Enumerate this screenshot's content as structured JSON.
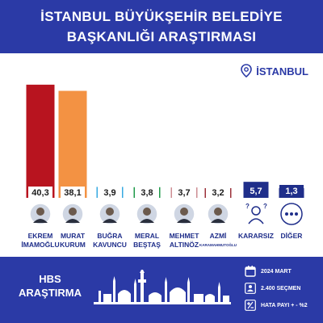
{
  "header": {
    "title_line1": "İSTANBUL BÜYÜKŞEHİR BELEDİYE",
    "title_line2": "BAŞKANLIĞI ARAŞTIRMASI"
  },
  "location": {
    "label": "İSTANBUL",
    "icon": "map-pin-icon"
  },
  "colors": {
    "header_bg": "#2b3aa6",
    "footer_bg": "#2b3aa6"
  },
  "chart_data": {
    "type": "bar",
    "categories": [
      {
        "line1": "EKREM",
        "line2": "İMAMOĞLU",
        "color": "#b8141f",
        "avatar": "person-photo-icon"
      },
      {
        "line1": "MURAT",
        "line2": "KURUM",
        "color": "#f39243",
        "avatar": "person-photo-icon"
      },
      {
        "line1": "BUĞRA",
        "line2": "KAVUNCU",
        "color": "#36a9e1",
        "avatar": "person-photo-icon"
      },
      {
        "line1": "MERAL",
        "line2": "BEŞTAŞ",
        "color": "#1f9a4a",
        "avatar": "person-photo-icon"
      },
      {
        "line1": "MEHMET",
        "line2": "ALTINÖZ",
        "color": "#cd8d93",
        "avatar": "person-photo-icon"
      },
      {
        "line1": "AZMİ",
        "line2": "KARAMAHMUTOĞLU",
        "color": "#9b3039",
        "avatar": "person-photo-icon"
      },
      {
        "line1": "KARARSIZ",
        "line2": "",
        "color": "#1f2e8a",
        "avatar": "undecided-person-icon"
      },
      {
        "line1": "DİĞER",
        "line2": "",
        "color": "#1f2e8a",
        "avatar": "more-dots-icon"
      }
    ],
    "values": [
      40.3,
      38.1,
      3.9,
      3.8,
      3.7,
      3.2,
      5.7,
      1.3
    ],
    "labels": [
      "40,3",
      "38,1",
      "3,9",
      "3,8",
      "3,7",
      "3,2",
      "5,7",
      "1,3"
    ],
    "ylim": [
      0,
      44
    ]
  },
  "footer": {
    "brand_line1": "HBS",
    "brand_line2": "ARAŞTIRMA",
    "info": [
      {
        "icon": "calendar-icon",
        "text": "2024 MART"
      },
      {
        "icon": "people-icon",
        "text": "2.400 SEÇMEN"
      },
      {
        "icon": "plus-minus-icon",
        "text": "HATA PAYI + - %2"
      }
    ]
  }
}
